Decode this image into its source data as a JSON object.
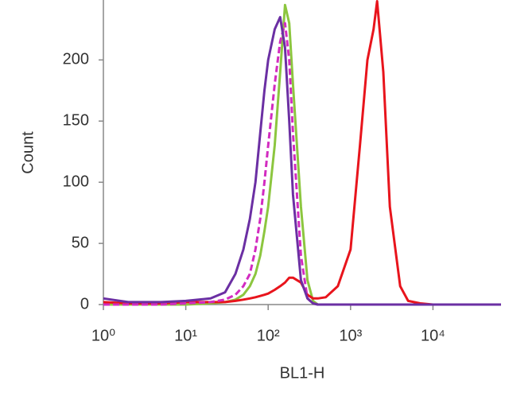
{
  "chart_data": {
    "type": "line",
    "xlabel": "BL1-H",
    "ylabel": "Count",
    "xscale": "log",
    "x": [
      1,
      2,
      5,
      10,
      20,
      30,
      40,
      50,
      60,
      70,
      80,
      90,
      100,
      120,
      140,
      160,
      180,
      200,
      250,
      300,
      350,
      400,
      500,
      700,
      1000,
      1300,
      1600,
      1900,
      2100,
      2500,
      3000,
      4000,
      5000,
      7000,
      10000,
      30000,
      67000
    ],
    "series": [
      {
        "name": "Green",
        "color": "#8cc63f",
        "style": "solid",
        "values": [
          0,
          0,
          0,
          0,
          1,
          2,
          4,
          8,
          15,
          25,
          40,
          60,
          80,
          130,
          190,
          245,
          230,
          180,
          80,
          20,
          3,
          0,
          0,
          0,
          0,
          0,
          0,
          0,
          0,
          0,
          0,
          0,
          0,
          0,
          0,
          0,
          0
        ]
      },
      {
        "name": "Red",
        "color": "#e8141c",
        "style": "solid",
        "values": [
          2,
          1,
          1,
          2,
          2,
          2,
          3,
          4,
          5,
          6,
          7,
          8,
          9,
          12,
          15,
          18,
          22,
          22,
          18,
          8,
          5,
          5,
          6,
          15,
          45,
          130,
          200,
          225,
          248,
          190,
          80,
          15,
          3,
          1,
          0,
          0,
          0
        ]
      },
      {
        "name": "Magenta",
        "color": "#d22bc0",
        "style": "dashed",
        "values": [
          0,
          0,
          0,
          1,
          2,
          4,
          8,
          15,
          25,
          45,
          70,
          100,
          130,
          180,
          215,
          230,
          200,
          140,
          40,
          5,
          1,
          0,
          0,
          0,
          0,
          0,
          0,
          0,
          0,
          0,
          0,
          0,
          0,
          0,
          0,
          0,
          0
        ]
      },
      {
        "name": "Purple",
        "color": "#6b2fa3",
        "style": "solid",
        "values": [
          5,
          2,
          2,
          3,
          5,
          10,
          25,
          45,
          70,
          100,
          140,
          175,
          200,
          225,
          235,
          210,
          150,
          90,
          20,
          5,
          1,
          0,
          0,
          0,
          0,
          0,
          0,
          0,
          0,
          0,
          0,
          0,
          0,
          0,
          0,
          0,
          0
        ]
      }
    ],
    "xlim": [
      1,
      67000
    ],
    "ylim": [
      0,
      249
    ],
    "xticks": [
      {
        "value": 1,
        "label": "10⁰"
      },
      {
        "value": 10,
        "label": "10¹"
      },
      {
        "value": 100,
        "label": "10²"
      },
      {
        "value": 1000,
        "label": "10³"
      },
      {
        "value": 10000,
        "label": "10⁴"
      }
    ],
    "yticks": [
      0,
      50,
      100,
      150,
      200
    ],
    "grid": false
  }
}
